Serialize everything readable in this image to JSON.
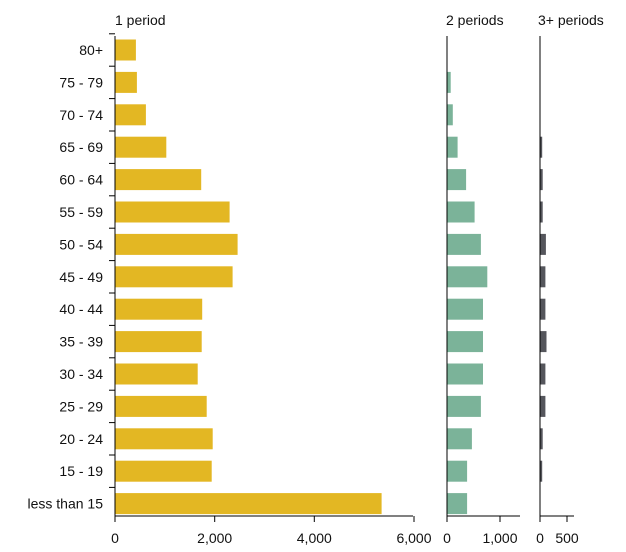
{
  "chart_data": {
    "type": "bar",
    "orientation": "horizontal",
    "categories": [
      "80+",
      "75 - 79",
      "70 - 74",
      "65 - 69",
      "60 - 64",
      "55 - 59",
      "50 - 54",
      "45 - 49",
      "40 - 44",
      "35 - 39",
      "30 - 34",
      "25 - 29",
      "20 - 24",
      "15 - 19",
      "less than 15"
    ],
    "panels": [
      {
        "name": "1 period",
        "color": "#E3B723",
        "xlim": [
          0,
          6000
        ],
        "ticks": [
          0,
          2000,
          4000,
          6000
        ],
        "tick_labels": [
          "0",
          "2,000",
          "4,000",
          "6,000"
        ],
        "values": [
          420,
          440,
          620,
          1030,
          1730,
          2300,
          2460,
          2360,
          1750,
          1740,
          1660,
          1840,
          1960,
          1940,
          5350
        ]
      },
      {
        "name": "2 periods",
        "color": "#7BB399",
        "xlim": [
          0,
          1300
        ],
        "ticks": [
          0,
          1000
        ],
        "tick_labels": [
          "0",
          "1,000"
        ],
        "values": [
          0,
          70,
          110,
          200,
          360,
          520,
          640,
          760,
          680,
          680,
          680,
          640,
          470,
          380,
          380
        ]
      },
      {
        "name": "3+ periods",
        "color": "#55565C",
        "xlim": [
          0,
          550
        ],
        "ticks": [
          0,
          500
        ],
        "tick_labels": [
          "0",
          "500"
        ],
        "values": [
          0,
          0,
          0,
          40,
          50,
          50,
          110,
          100,
          100,
          120,
          100,
          100,
          50,
          40,
          0
        ]
      }
    ]
  }
}
